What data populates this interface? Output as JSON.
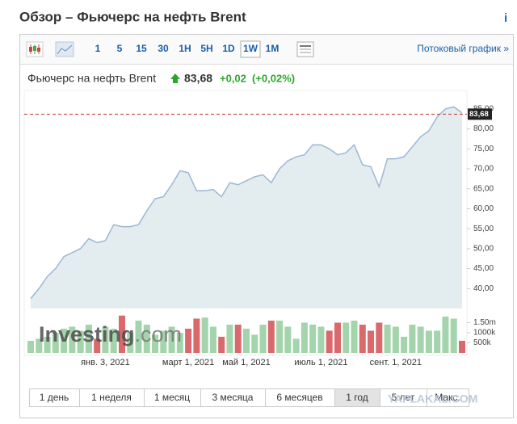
{
  "header": {
    "title": "Обзор – Фьючерс на нефть Brent",
    "info": "i"
  },
  "toolbar": {
    "intervals": [
      "1",
      "5",
      "15",
      "30",
      "1H",
      "5H",
      "1D",
      "1W",
      "1M"
    ],
    "streaming": "Потоковый график »"
  },
  "quote": {
    "name": "Фьючерс на нефть Brent",
    "change": "+0,02",
    "change_percent": "(+0,02%)"
  },
  "tabs": [
    "1 день",
    "1 неделя",
    "1 месяц",
    "3 месяца",
    "6 месяцев",
    "1 год",
    "5 лет",
    "Макс."
  ],
  "logo": {
    "brand": "Investing",
    "suffix": ".com"
  },
  "watermark": "YAPLAKAL.COM",
  "chart_data": {
    "type": "area",
    "color": "#9db7d4",
    "fill": "#e3edf0",
    "categories": [
      null,
      null,
      null,
      null,
      null,
      null,
      null,
      null,
      null,
      "янв. 3, 2021",
      null,
      null,
      null,
      null,
      null,
      null,
      null,
      null,
      null,
      "март 1, 2021",
      null,
      null,
      null,
      null,
      null,
      null,
      "май 1, 2021",
      null,
      null,
      null,
      null,
      null,
      null,
      null,
      null,
      "июль 1, 2021",
      null,
      null,
      null,
      null,
      null,
      null,
      null,
      null,
      "сент. 1, 2021",
      null,
      null,
      null,
      null,
      null,
      null,
      null,
      null
    ],
    "values": [
      37.5,
      40,
      43,
      45,
      48,
      49,
      50,
      52.5,
      51.5,
      52,
      56,
      55.5,
      55.5,
      56,
      59.5,
      62.5,
      63,
      66,
      69.5,
      69,
      64.5,
      64.5,
      64.8,
      63,
      66.5,
      66,
      67,
      68,
      68.5,
      66.5,
      70,
      72,
      73,
      73.5,
      76,
      76,
      75,
      73.5,
      74,
      76,
      71,
      70.5,
      65.5,
      72.5,
      72.5,
      73,
      75.5,
      78,
      79.5,
      83,
      85,
      85.5,
      84
    ],
    "ylim": [
      35,
      88
    ],
    "yticks": [
      {
        "value": 40,
        "label": "40,00"
      },
      {
        "value": 45,
        "label": "45,00"
      },
      {
        "value": 50,
        "label": "50,00"
      },
      {
        "value": 55,
        "label": "55,00"
      },
      {
        "value": 60,
        "label": "60,00"
      },
      {
        "value": 65,
        "label": "65,00"
      },
      {
        "value": 70,
        "label": "70,00"
      },
      {
        "value": 75,
        "label": "75,00"
      },
      {
        "value": 80,
        "label": "80,00"
      },
      {
        "value": 85,
        "label": "85,00"
      }
    ],
    "current": {
      "value": 83.68,
      "label": "83,68"
    },
    "volume": {
      "up_color": "#a3d4ab",
      "down_color": "#d9696d",
      "values": [
        600000,
        700000,
        800000,
        1000000,
        1200000,
        1300000,
        1100000,
        1400000,
        700000,
        1300000,
        1200000,
        1850000,
        1000000,
        1600000,
        1400000,
        900000,
        1100000,
        1300000,
        1000000,
        1200000,
        1700000,
        1750000,
        1300000,
        800000,
        1400000,
        1400000,
        1200000,
        900000,
        1400000,
        1600000,
        1600000,
        1300000,
        700000,
        1500000,
        1400000,
        1300000,
        1100000,
        1500000,
        1500000,
        1600000,
        1400000,
        1100000,
        1500000,
        1400000,
        1300000,
        800000,
        1400000,
        1300000,
        1100000,
        1100000,
        1800000,
        1700000,
        600000
      ],
      "ylim": [
        0,
        1900000
      ],
      "yticks": [
        {
          "value": 500000,
          "label": "500k"
        },
        {
          "value": 1000000,
          "label": "1000k"
        },
        {
          "value": 1500000,
          "label": "1.50m"
        }
      ]
    }
  }
}
